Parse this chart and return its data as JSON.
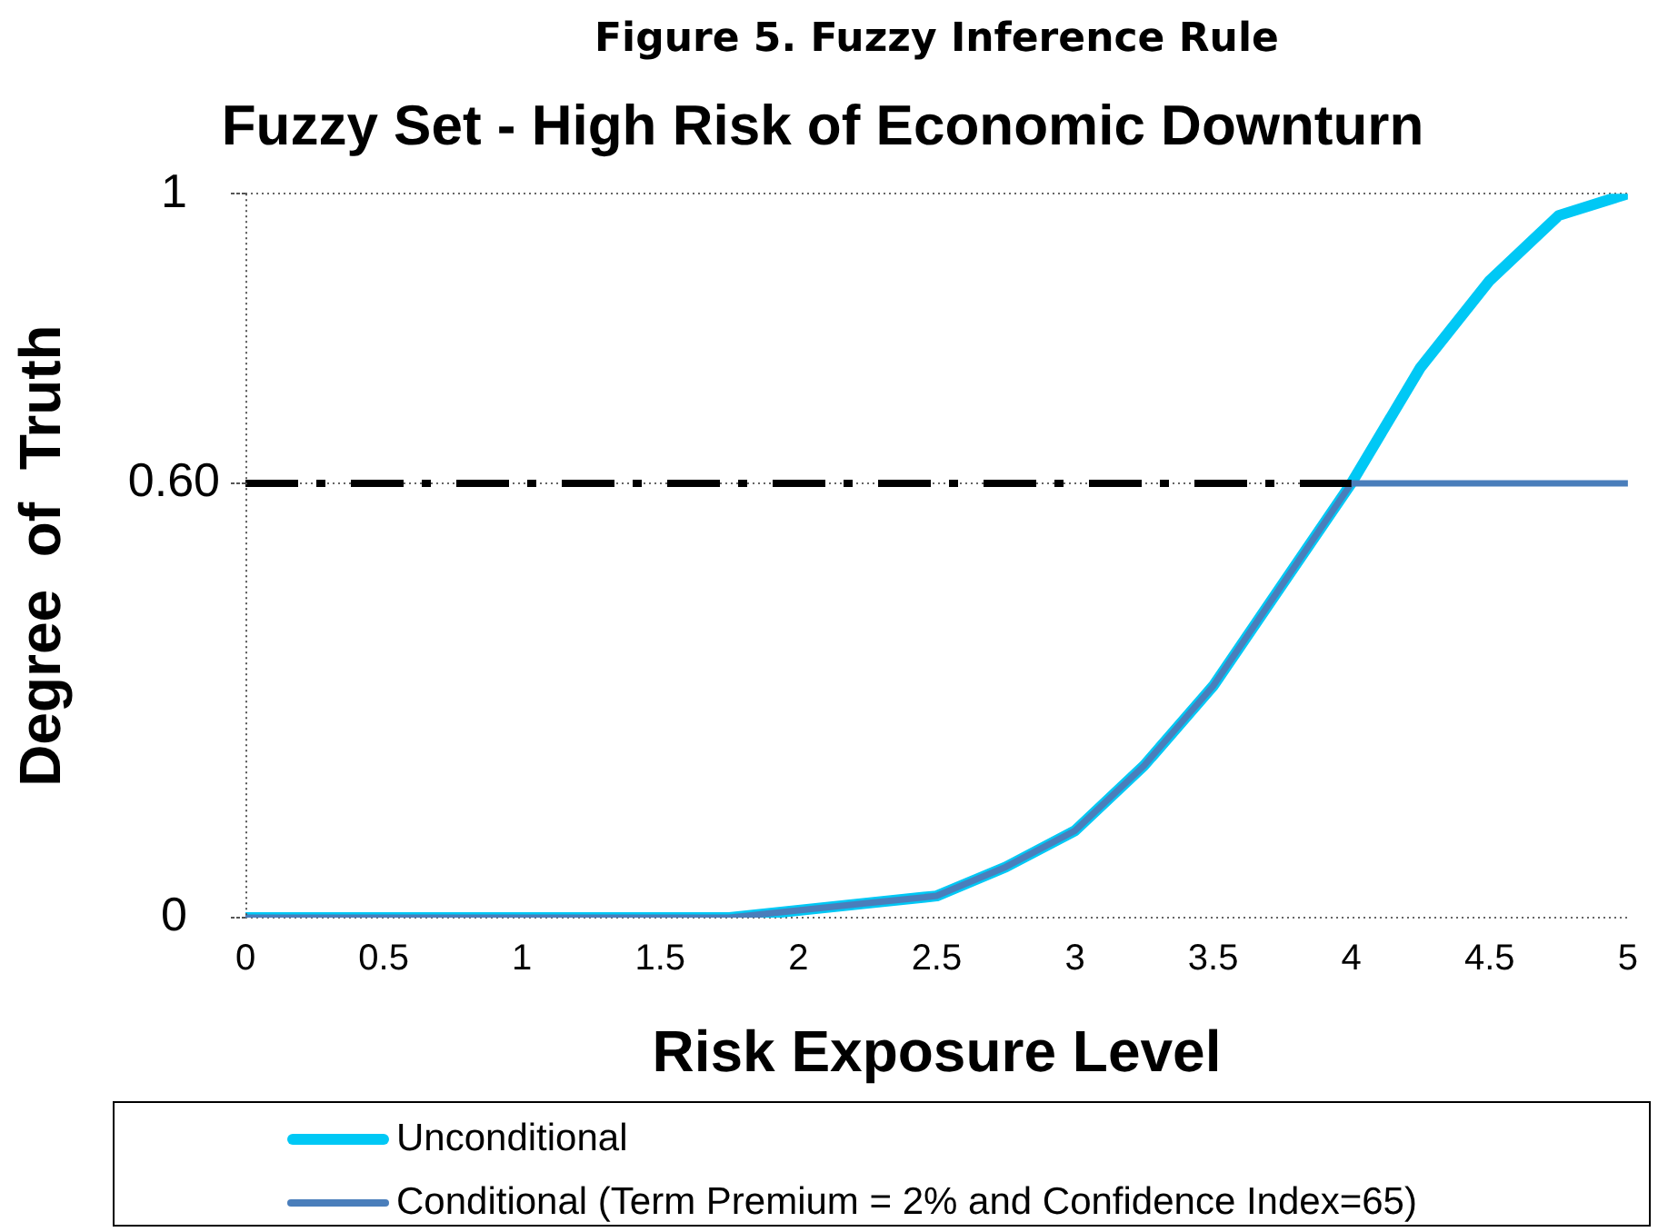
{
  "chart_data": {
    "type": "line",
    "title": "Figure 5. Fuzzy Inference Rule",
    "subtitle": "Fuzzy Set - High Risk of Economic Downturn",
    "xlabel": "Risk Exposure Level",
    "ylabel": "Degree  of  Truth",
    "x": [
      0,
      0.25,
      0.5,
      0.75,
      1,
      1.25,
      1.5,
      1.75,
      2,
      2.25,
      2.5,
      2.75,
      3,
      3.25,
      3.5,
      3.75,
      4,
      4.25,
      4.5,
      4.75,
      5
    ],
    "series": [
      {
        "name": "Unconditional",
        "color": "#00c8f5",
        "values": [
          0,
          0,
          0,
          0,
          0,
          0,
          0,
          0,
          0.01,
          0.02,
          0.03,
          0.07,
          0.12,
          0.21,
          0.32,
          0.46,
          0.6,
          0.76,
          0.88,
          0.97,
          1
        ]
      },
      {
        "name": "Conditional (Term Premium = 2% and Confidence Index=65)",
        "color": "#4a7ebb",
        "values": [
          0,
          0,
          0,
          0,
          0,
          0,
          0,
          0,
          0.01,
          0.02,
          0.03,
          0.07,
          0.12,
          0.21,
          0.32,
          0.46,
          0.6,
          0.6,
          0.6,
          0.6,
          0.6
        ]
      },
      {
        "color": "#000000",
        "x": [
          0,
          4
        ],
        "values": [
          0.6,
          0.6
        ],
        "line_style": "dashdot"
      }
    ],
    "xlim": [
      0,
      5
    ],
    "xticks": [
      0,
      0.5,
      1,
      1.5,
      2,
      2.5,
      3,
      3.5,
      4,
      4.5,
      5
    ],
    "ylim": [
      0,
      1
    ],
    "yticks": [
      0,
      {
        "value": 0.6,
        "label": "0.60"
      },
      1
    ],
    "grid": "y",
    "legend": "bottom",
    "marker": "none",
    "line_style": "solid"
  }
}
